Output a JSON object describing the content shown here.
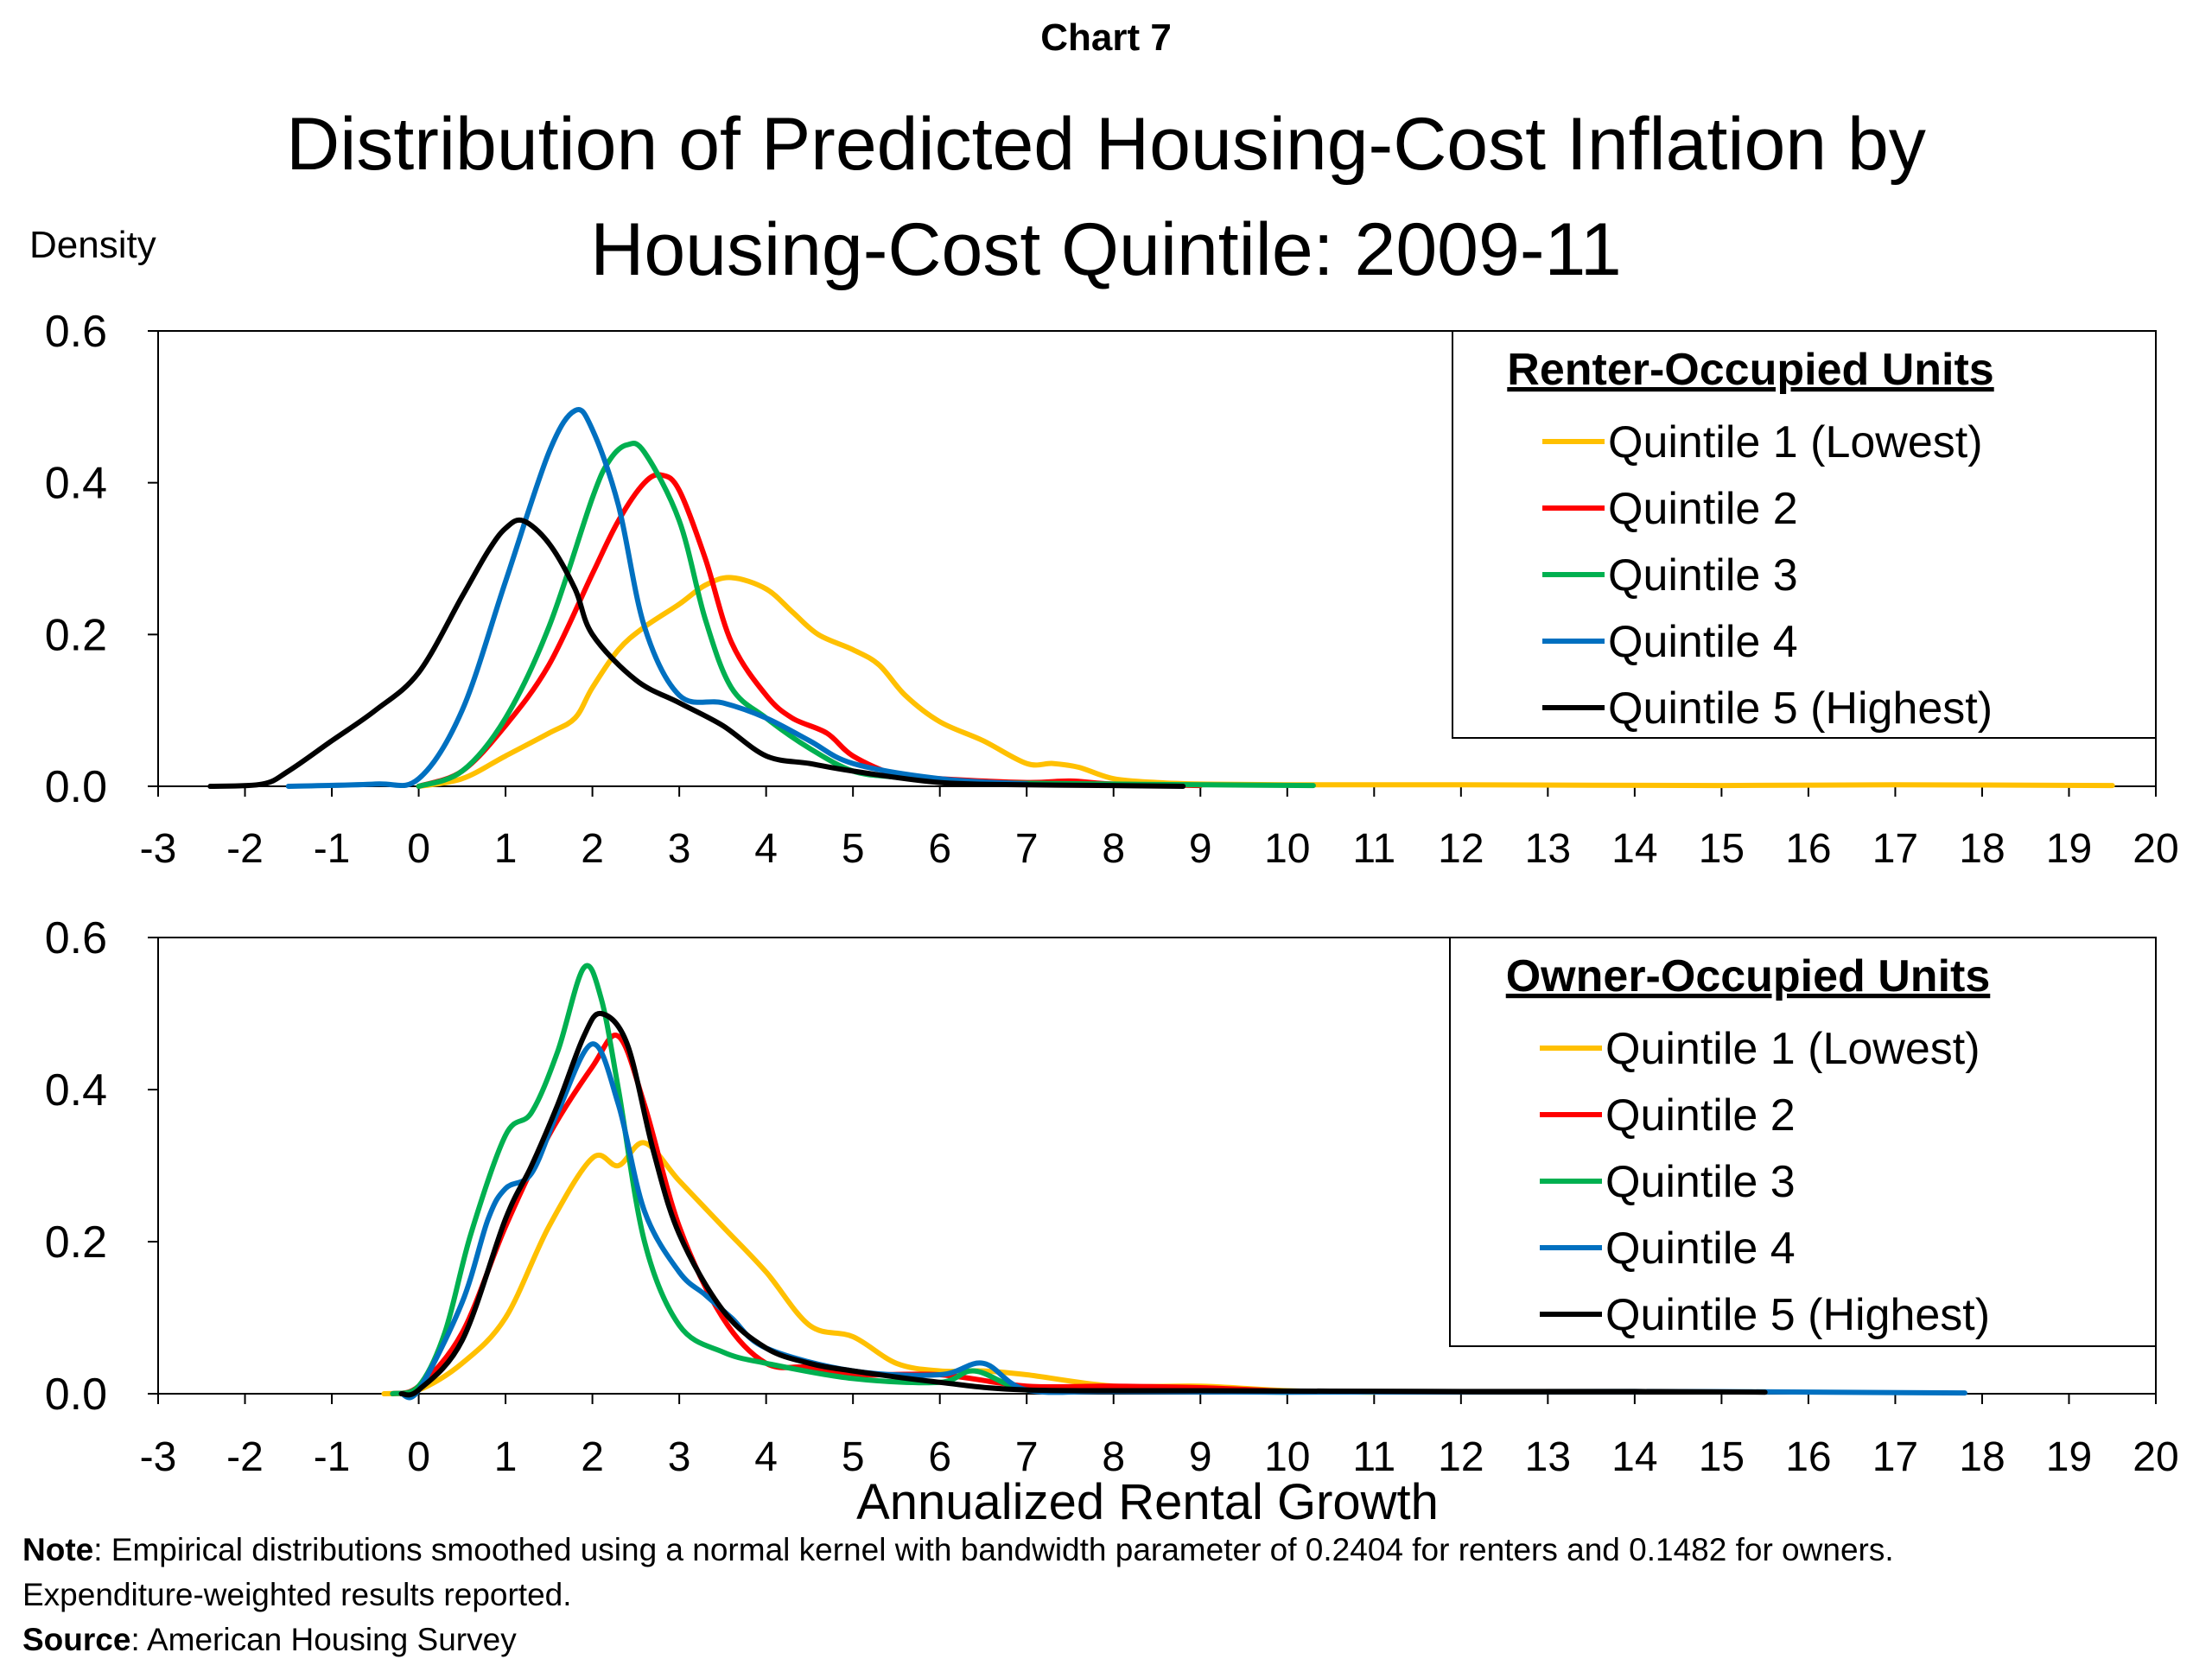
{
  "header": {
    "supertitle": "Chart 7",
    "title_line1": "Distribution of Predicted Housing-Cost Inflation by",
    "title_line2": "Housing-Cost Quintile: 2009-11",
    "ylabel": "Density"
  },
  "footer": {
    "note_label": "Note",
    "note_text": ": Empirical distributions smoothed using a normal kernel with bandwidth parameter of  0.2404 for renters and 0.1482 for owners.",
    "note_line2": "Expenditure-weighted results reported.",
    "source_label": "Source",
    "source_text": ": American Housing Survey"
  },
  "colors": {
    "q1": "#FFC000",
    "q2": "#FF0000",
    "q3": "#00B050",
    "q4": "#0070C0",
    "q5": "#000000"
  },
  "chart_data": [
    {
      "type": "line",
      "legend_title": "Renter-Occupied Units",
      "xlabel": "",
      "ylabel": "Density",
      "xlim": [
        -3,
        20
      ],
      "ylim": [
        0,
        0.6
      ],
      "xticks": [
        "-3",
        "-2",
        "-1",
        "0",
        "1",
        "2",
        "3",
        "4",
        "5",
        "6",
        "7",
        "8",
        "9",
        "10",
        "11",
        "12",
        "13",
        "14",
        "15",
        "16",
        "17",
        "18",
        "19",
        "20"
      ],
      "yticks": [
        "0.0",
        "0.2",
        "0.4",
        "0.6"
      ],
      "legend_placement": "top-right",
      "series": [
        {
          "name": "Quintile 1 (Lowest)",
          "color": "#FFC000",
          "x": [
            0,
            0.5,
            1,
            1.5,
            1.8,
            2,
            2.3,
            2.6,
            3,
            3.3,
            3.6,
            4,
            4.3,
            4.6,
            5,
            5.3,
            5.6,
            6,
            6.5,
            7,
            7.3,
            7.6,
            8,
            8.5,
            9,
            10,
            12,
            15,
            17,
            19.5
          ],
          "y": [
            0,
            0.01,
            0.04,
            0.07,
            0.09,
            0.13,
            0.18,
            0.21,
            0.24,
            0.265,
            0.275,
            0.26,
            0.23,
            0.2,
            0.18,
            0.16,
            0.12,
            0.085,
            0.06,
            0.03,
            0.03,
            0.025,
            0.01,
            0.005,
            0.003,
            0.002,
            0.002,
            0.001,
            0.002,
            0.001
          ]
        },
        {
          "name": "Quintile 2",
          "color": "#FF0000",
          "x": [
            0,
            0.5,
            1,
            1.5,
            2,
            2.3,
            2.6,
            2.8,
            3,
            3.3,
            3.6,
            4,
            4.3,
            4.7,
            5,
            5.5,
            6,
            7,
            7.5,
            8,
            9
          ],
          "y": [
            0,
            0.02,
            0.08,
            0.16,
            0.28,
            0.35,
            0.4,
            0.41,
            0.39,
            0.3,
            0.19,
            0.12,
            0.09,
            0.07,
            0.04,
            0.015,
            0.01,
            0.005,
            0.007,
            0.003,
            0.001
          ]
        },
        {
          "name": "Quintile 3",
          "color": "#00B050",
          "x": [
            0,
            0.5,
            1,
            1.5,
            2,
            2.2,
            2.4,
            2.6,
            3,
            3.3,
            3.6,
            4,
            4.5,
            5,
            5.5,
            6,
            7,
            8,
            9,
            10.3
          ],
          "y": [
            0,
            0.02,
            0.09,
            0.21,
            0.38,
            0.43,
            0.45,
            0.44,
            0.35,
            0.22,
            0.13,
            0.09,
            0.05,
            0.02,
            0.012,
            0.006,
            0.004,
            0.003,
            0.002,
            0.001
          ]
        },
        {
          "name": "Quintile 4",
          "color": "#0070C0",
          "x": [
            -1.5,
            -0.5,
            0,
            0.5,
            1,
            1.5,
            1.8,
            2,
            2.3,
            2.6,
            3,
            3.5,
            4,
            4.5,
            5,
            6,
            7
          ],
          "y": [
            0,
            0.003,
            0.01,
            0.1,
            0.27,
            0.44,
            0.495,
            0.47,
            0.37,
            0.21,
            0.12,
            0.11,
            0.09,
            0.06,
            0.03,
            0.01,
            0.003
          ]
        },
        {
          "name": "Quintile 5 (Highest)",
          "color": "#000000",
          "x": [
            -2.4,
            -1.8,
            -1.5,
            -1,
            -0.5,
            0,
            0.5,
            0.8,
            1,
            1.2,
            1.5,
            1.8,
            2,
            2.5,
            3,
            3.5,
            4,
            4.5,
            5,
            6,
            7,
            8,
            8.8
          ],
          "y": [
            0,
            0.003,
            0.02,
            0.06,
            0.1,
            0.15,
            0.25,
            0.31,
            0.34,
            0.35,
            0.32,
            0.26,
            0.2,
            0.14,
            0.11,
            0.08,
            0.04,
            0.03,
            0.02,
            0.005,
            0.002,
            0.001,
            0
          ]
        }
      ]
    },
    {
      "type": "line",
      "legend_title": "Owner-Occupied Units",
      "xlabel": "Annualized Rental Growth",
      "ylabel": "",
      "xlim": [
        -3,
        20
      ],
      "ylim": [
        0,
        0.6
      ],
      "xticks": [
        "-3",
        "-2",
        "-1",
        "0",
        "1",
        "2",
        "3",
        "4",
        "5",
        "6",
        "7",
        "8",
        "9",
        "10",
        "11",
        "12",
        "13",
        "14",
        "15",
        "16",
        "17",
        "18",
        "19",
        "20"
      ],
      "yticks": [
        "0.0",
        "0.2",
        "0.4",
        "0.6"
      ],
      "legend_placement": "top-right",
      "series": [
        {
          "name": "Quintile 1 (Lowest)",
          "color": "#FFC000",
          "x": [
            -0.4,
            0,
            0.5,
            1,
            1.5,
            2,
            2.3,
            2.6,
            3,
            3.5,
            4,
            4.5,
            5,
            5.5,
            6,
            6.5,
            7,
            8,
            9,
            10,
            11
          ],
          "y": [
            0,
            0.005,
            0.04,
            0.1,
            0.22,
            0.31,
            0.3,
            0.33,
            0.28,
            0.22,
            0.16,
            0.09,
            0.075,
            0.04,
            0.03,
            0.03,
            0.025,
            0.01,
            0.01,
            0.004,
            0.002
          ]
        },
        {
          "name": "Quintile 2",
          "color": "#FF0000",
          "x": [
            -0.3,
            0,
            0.5,
            1,
            1.5,
            2,
            2.3,
            2.6,
            3,
            3.5,
            4,
            4.5,
            5,
            6,
            7,
            8,
            9,
            10
          ],
          "y": [
            0,
            0.01,
            0.08,
            0.22,
            0.34,
            0.43,
            0.47,
            0.38,
            0.22,
            0.1,
            0.04,
            0.035,
            0.025,
            0.025,
            0.01,
            0.01,
            0.008,
            0.003
          ]
        },
        {
          "name": "Quintile 3",
          "color": "#00B050",
          "x": [
            -0.3,
            0,
            0.3,
            0.6,
            1,
            1.3,
            1.6,
            1.9,
            2.1,
            2.3,
            2.6,
            3,
            3.5,
            4,
            5,
            6,
            6.4,
            7,
            8,
            10
          ],
          "y": [
            0,
            0.01,
            0.08,
            0.21,
            0.34,
            0.37,
            0.45,
            0.56,
            0.52,
            0.4,
            0.2,
            0.09,
            0.055,
            0.04,
            0.02,
            0.015,
            0.03,
            0.005,
            0.004,
            0.002
          ]
        },
        {
          "name": "Quintile 4",
          "color": "#0070C0",
          "x": [
            -0.2,
            0,
            0.5,
            0.8,
            1,
            1.3,
            1.6,
            2,
            2.3,
            2.6,
            3,
            3.3,
            3.6,
            4,
            5,
            6,
            6.5,
            7,
            8,
            10,
            14,
            17.8
          ],
          "y": [
            0,
            0.005,
            0.12,
            0.23,
            0.27,
            0.29,
            0.37,
            0.46,
            0.38,
            0.24,
            0.16,
            0.13,
            0.1,
            0.06,
            0.03,
            0.025,
            0.04,
            0.005,
            0.003,
            0.002,
            0.003,
            0.001
          ]
        },
        {
          "name": "Quintile 5 (Highest)",
          "color": "#000000",
          "x": [
            -0.2,
            0,
            0.5,
            1,
            1.3,
            1.6,
            1.9,
            2.1,
            2.4,
            2.7,
            3,
            3.5,
            4,
            4.5,
            5,
            6,
            7,
            9,
            12,
            14,
            15.5
          ],
          "y": [
            0,
            0.005,
            0.07,
            0.23,
            0.3,
            0.38,
            0.47,
            0.5,
            0.46,
            0.32,
            0.21,
            0.11,
            0.06,
            0.04,
            0.03,
            0.015,
            0.005,
            0.004,
            0.003,
            0.003,
            0.002
          ]
        }
      ]
    }
  ]
}
